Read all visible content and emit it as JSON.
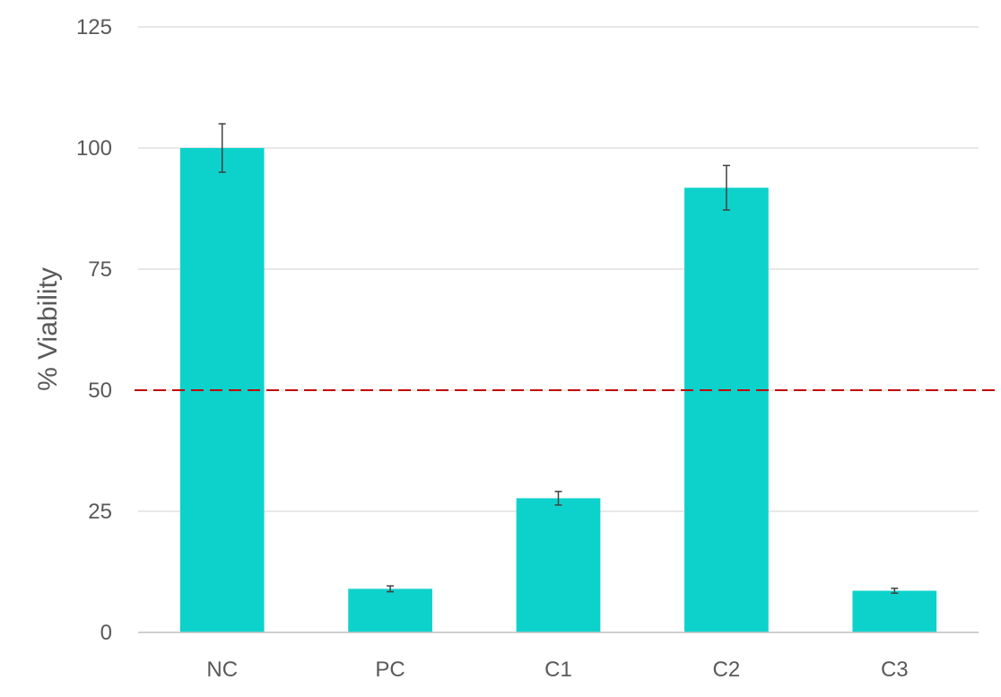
{
  "chart_data": {
    "type": "bar",
    "title": "",
    "xlabel": "",
    "ylabel": "% Viability",
    "categories": [
      "NC",
      "PC",
      "C1",
      "C2",
      "C3"
    ],
    "values": [
      100,
      9,
      27.7,
      91.8,
      8.6
    ],
    "errors": [
      5,
      0.6,
      1.4,
      4.6,
      0.5
    ],
    "ylim": [
      0,
      125
    ],
    "yticks": [
      0,
      25,
      50,
      75,
      100,
      125
    ],
    "ytick_labels": [
      "0",
      "25",
      "50",
      "75",
      "100",
      "125"
    ],
    "grid": true,
    "legend": "none",
    "reference_line": {
      "y": 50,
      "style": "dashed",
      "color": "#C00000"
    },
    "colors": {
      "bar": "#0DD2CB",
      "grid": "#D9D9D9",
      "axis": "#BFBFBF",
      "error_bar": "#404040",
      "text": "#595959"
    }
  }
}
